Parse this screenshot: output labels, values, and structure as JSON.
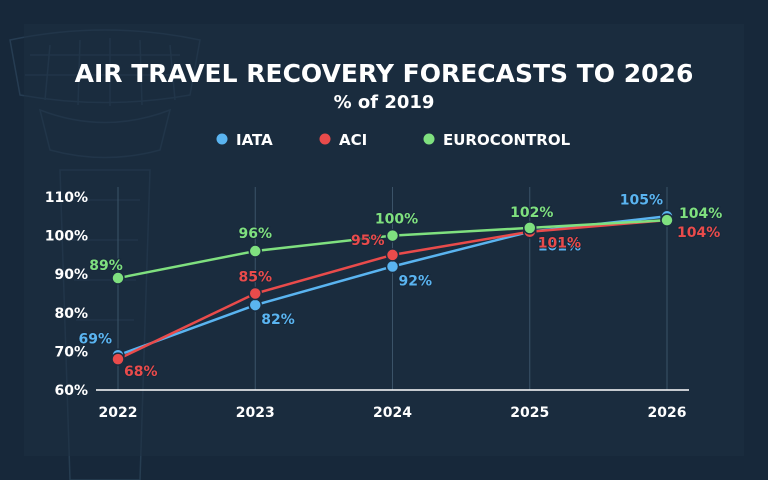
{
  "chart_data": {
    "type": "line",
    "title": "AIR TRAVEL RECOVERY FORECASTS TO 2026",
    "subtitle": "% of 2019",
    "xlabel": "",
    "ylabel": "",
    "x": [
      "2022",
      "2023",
      "2024",
      "2025",
      "2026"
    ],
    "ylim": [
      60,
      110
    ],
    "yticks": [
      "60%",
      "70%",
      "80%",
      "90%",
      "100%",
      "110%"
    ],
    "grid": "vertical",
    "legend": "top-center",
    "series": [
      {
        "name": "IATA",
        "color": "#5ab4f0",
        "values": [
          69,
          82,
          92,
          101,
          105
        ],
        "labels": [
          "69%",
          "82%",
          "92%",
          "101%",
          "105%"
        ]
      },
      {
        "name": "ACI",
        "color": "#e94b4b",
        "values": [
          68,
          85,
          95,
          101,
          104
        ],
        "labels": [
          "68%",
          "85%",
          "95%",
          "101%",
          "104%"
        ]
      },
      {
        "name": "EUROCONTROL",
        "color": "#7fe07f",
        "values": [
          89,
          96,
          100,
          102,
          104
        ],
        "labels": [
          "89%",
          "96%",
          "100%",
          "102%",
          "104%"
        ]
      }
    ]
  }
}
